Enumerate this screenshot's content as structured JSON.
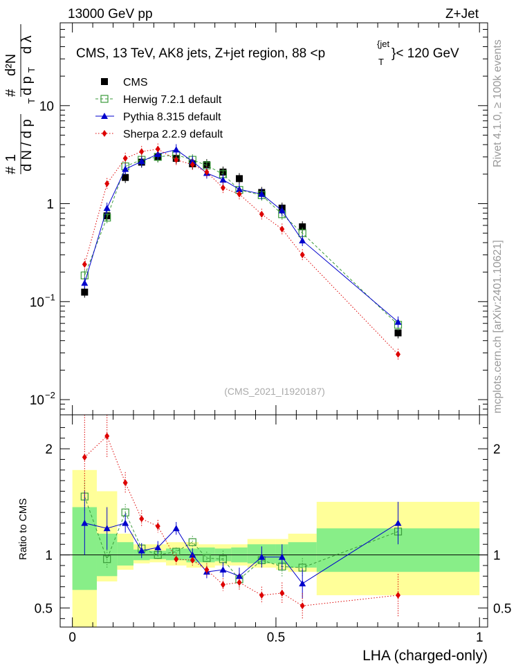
{
  "header": {
    "left": "13000 GeV pp",
    "right": "Z+Jet"
  },
  "side": {
    "rivet": "Rivet 4.1.0, ≥ 100k events",
    "mcplots": "mcplots.cern.ch [arXiv:2401.10621]"
  },
  "title": {
    "main": "CMS, 13 TeV, AK8 jets, Z+jet region, 88 <p",
    "sup": "{jet",
    "sub": "T",
    "tail": "}< 120 GeV"
  },
  "ylabel": {
    "one": "1",
    "num": "#",
    "den": "d N / d p",
    "den_sub": "T",
    "d2n": "d²N",
    "hash2": "#",
    "dpt": "d p",
    "dpt_sub": "T",
    "dl": "d λ"
  },
  "watermark": "(CMS_2021_I1920187)",
  "xlabel": "LHA (charged-only)",
  "ratio_ylabel": "Ratio to CMS",
  "chart_data": {
    "type": "scatter",
    "x_bins": [
      0.0,
      0.06,
      0.11,
      0.15,
      0.19,
      0.23,
      0.28,
      0.31,
      0.35,
      0.39,
      0.43,
      0.5,
      0.53,
      0.6,
      1.0
    ],
    "x": [
      0.03,
      0.085,
      0.13,
      0.17,
      0.21,
      0.255,
      0.295,
      0.33,
      0.37,
      0.41,
      0.465,
      0.515,
      0.565,
      0.8
    ],
    "xlim": [
      -0.03,
      1.02
    ],
    "xticks": [
      "0",
      "0.5",
      "1"
    ],
    "upper": {
      "yscale": "log",
      "ylim": [
        0.007,
        70
      ],
      "yticks": [
        {
          "value": 0.01,
          "base": "10",
          "exp": "−2"
        },
        {
          "value": 0.1,
          "base": "10",
          "exp": "−1"
        },
        {
          "value": 1,
          "base": "1",
          "exp": ""
        },
        {
          "value": 10,
          "base": "10",
          "exp": ""
        }
      ],
      "series": [
        {
          "name": "CMS",
          "color": "#000000",
          "marker": "square-filled",
          "values": [
            0.125,
            0.75,
            1.85,
            2.65,
            3.0,
            2.9,
            2.55,
            2.5,
            2.1,
            1.8,
            1.3,
            0.9,
            0.58,
            0.048
          ]
        },
        {
          "name": "Herwig 7.2.1 default",
          "color": "#3a9a3a",
          "marker": "square-open",
          "line": "dashed",
          "values": [
            0.185,
            0.72,
            2.4,
            2.8,
            3.0,
            3.15,
            2.8,
            2.45,
            2.0,
            1.38,
            1.22,
            0.78,
            0.5,
            0.058
          ]
        },
        {
          "name": "Pythia 8.315 default",
          "color": "#0000cc",
          "marker": "triangle",
          "line": "solid",
          "values": [
            0.155,
            0.9,
            2.25,
            2.7,
            3.2,
            3.55,
            2.7,
            2.05,
            1.75,
            1.4,
            1.25,
            0.85,
            0.42,
            0.062
          ]
        },
        {
          "name": "Sherpa 2.2.9 default",
          "color": "#dd0000",
          "marker": "diamond",
          "line": "dotted",
          "values": [
            0.24,
            1.6,
            2.9,
            3.4,
            3.6,
            2.8,
            2.5,
            2.1,
            1.45,
            1.25,
            0.78,
            0.55,
            0.3,
            0.029
          ]
        }
      ]
    },
    "ratio": {
      "ylim": [
        0.32,
        2.32
      ],
      "yticks": [
        "0.5",
        "1",
        "2"
      ],
      "ytick_values": [
        0.5,
        1,
        2
      ],
      "band_green": [
        [
          0.67,
          1.45
        ],
        [
          0.8,
          1.2
        ],
        [
          0.9,
          1.12
        ],
        [
          0.95,
          1.05
        ],
        [
          0.96,
          1.04
        ],
        [
          0.95,
          1.06
        ],
        [
          0.93,
          1.06
        ],
        [
          0.93,
          1.07
        ],
        [
          0.94,
          1.06
        ],
        [
          0.93,
          1.07
        ],
        [
          0.92,
          1.1
        ],
        [
          0.91,
          1.1
        ],
        [
          0.88,
          1.12
        ],
        [
          0.84,
          1.25
        ]
      ],
      "band_yellow": [
        [
          0.32,
          1.8
        ],
        [
          0.75,
          1.6
        ],
        [
          0.86,
          1.2
        ],
        [
          0.92,
          1.1
        ],
        [
          0.93,
          1.1
        ],
        [
          0.9,
          1.12
        ],
        [
          0.88,
          1.12
        ],
        [
          0.88,
          1.1
        ],
        [
          0.9,
          1.1
        ],
        [
          0.9,
          1.1
        ],
        [
          0.88,
          1.15
        ],
        [
          0.86,
          1.15
        ],
        [
          0.84,
          1.2
        ],
        [
          0.62,
          1.5
        ]
      ],
      "series": [
        {
          "name": "Herwig 7.2.1 default",
          "values": [
            1.55,
            0.96,
            1.4,
            1.06,
            1.0,
            1.03,
            1.12,
            0.97,
            0.96,
            0.77,
            0.95,
            0.89,
            0.88,
            1.22
          ],
          "err": [
            0.15,
            0.09,
            0.08,
            0.05,
            0.04,
            0.04,
            0.06,
            0.06,
            0.08,
            0.09,
            0.08,
            0.1,
            0.09,
            0.1
          ]
        },
        {
          "name": "Pythia 8.315 default",
          "values": [
            1.3,
            1.25,
            1.3,
            1.04,
            1.07,
            1.25,
            1.0,
            0.84,
            0.86,
            0.8,
            0.98,
            0.98,
            0.73,
            1.3
          ],
          "err": [
            0.3,
            0.2,
            0.09,
            0.07,
            0.06,
            0.06,
            0.06,
            0.06,
            0.07,
            0.08,
            0.1,
            0.12,
            0.14,
            0.2
          ]
        },
        {
          "name": "Sherpa 2.2.9 default",
          "values": [
            1.92,
            2.12,
            1.68,
            1.34,
            1.27,
            0.96,
            0.95,
            0.86,
            0.72,
            0.74,
            0.62,
            0.64,
            0.52,
            0.62
          ],
          "err": [
            0.4,
            0.2,
            0.1,
            0.08,
            0.06,
            0.05,
            0.05,
            0.06,
            0.06,
            0.08,
            0.08,
            0.1,
            0.12,
            0.2
          ]
        }
      ]
    }
  }
}
